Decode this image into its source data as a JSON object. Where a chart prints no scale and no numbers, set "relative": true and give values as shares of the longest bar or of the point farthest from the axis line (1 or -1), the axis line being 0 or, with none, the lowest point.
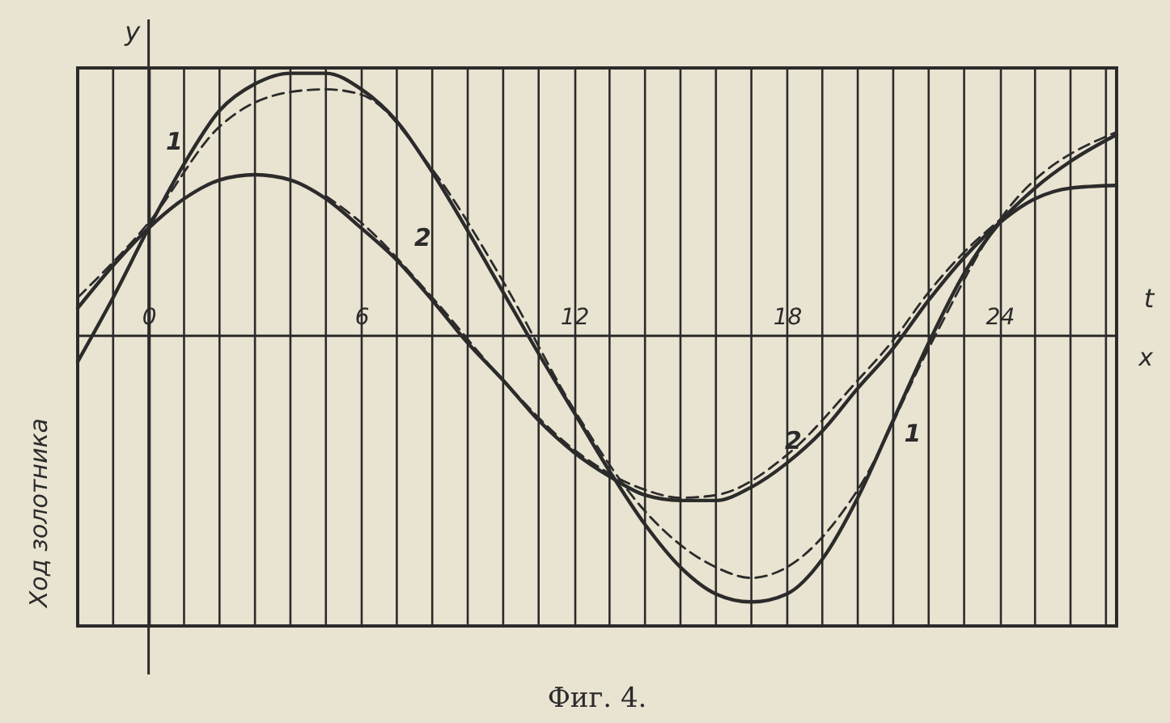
{
  "chart_data": {
    "type": "line",
    "title": "Фиг. 4.",
    "xlabel": "t",
    "ylabel": "y",
    "relative": true,
    "grid": "x",
    "marker": "none",
    "annotations": [
      "x",
      "Ход золотника"
    ],
    "xlim": [
      -2,
      27.3
    ],
    "xticks": [
      {
        "value": -1,
        "label": null
      },
      0,
      {
        "value": 1,
        "label": null
      },
      {
        "value": 2,
        "label": null
      },
      {
        "value": 3,
        "label": null
      },
      {
        "value": 4,
        "label": null
      },
      {
        "value": 5,
        "label": null
      },
      6,
      {
        "value": 7,
        "label": null
      },
      {
        "value": 8,
        "label": null
      },
      {
        "value": 9,
        "label": null
      },
      {
        "value": 10,
        "label": null
      },
      {
        "value": 11,
        "label": null
      },
      12,
      {
        "value": 13,
        "label": null
      },
      {
        "value": 14,
        "label": null
      },
      {
        "value": 15,
        "label": null
      },
      {
        "value": 16,
        "label": null
      },
      {
        "value": 17,
        "label": null
      },
      18,
      {
        "value": 19,
        "label": null
      },
      {
        "value": 20,
        "label": null
      },
      {
        "value": 21,
        "label": null
      },
      {
        "value": 22,
        "label": null
      },
      {
        "value": 23,
        "label": null
      },
      24,
      {
        "value": 25,
        "label": null
      },
      {
        "value": 26,
        "label": null
      },
      {
        "value": 27,
        "label": null
      }
    ],
    "series": [
      {
        "name": "1",
        "color": "#2b2b2b",
        "line_style": "solid",
        "x": [
          -2,
          -1,
          0,
          1,
          2,
          3,
          4,
          5,
          6,
          7,
          8,
          9,
          10,
          11,
          12,
          13,
          14,
          15,
          16,
          17,
          18,
          19,
          20,
          21,
          22,
          23,
          24,
          25,
          26,
          27.3
        ],
        "values": [
          -0.1,
          0.14,
          0.4,
          0.64,
          0.84,
          0.94,
          0.98,
          0.98,
          0.92,
          0.8,
          0.61,
          0.39,
          0.16,
          -0.07,
          -0.29,
          -0.51,
          -0.71,
          -0.87,
          -0.97,
          -1,
          -0.97,
          -0.84,
          -0.61,
          -0.32,
          -0.03,
          0.23,
          0.42,
          0.55,
          0.65,
          0.75
        ]
      },
      {
        "name": "2",
        "color": "#2b2b2b",
        "line_style": "solid",
        "x": [
          -2,
          -1,
          0,
          1,
          2,
          3,
          4,
          5,
          6,
          7,
          8,
          9,
          10,
          11,
          12,
          13,
          14,
          15,
          16,
          17,
          18,
          19,
          20,
          21,
          22,
          23,
          24,
          25,
          26,
          27.3
        ],
        "values": [
          0.1,
          0.26,
          0.4,
          0.51,
          0.58,
          0.6,
          0.58,
          0.51,
          0.4,
          0.28,
          0.13,
          -0.03,
          -0.17,
          -0.32,
          -0.44,
          -0.53,
          -0.6,
          -0.62,
          -0.62,
          -0.57,
          -0.48,
          -0.36,
          -0.2,
          -0.05,
          0.13,
          0.29,
          0.42,
          0.51,
          0.55,
          0.56
        ]
      },
      {
        "color": "#2b2b2b",
        "line_style": "dashed",
        "x": [
          -2,
          0,
          2,
          4,
          5,
          6,
          8,
          10,
          12,
          14,
          16,
          17,
          18,
          20,
          22,
          24,
          27.3
        ],
        "values": [
          0.14,
          0.42,
          0.78,
          0.91,
          0.92,
          0.9,
          0.62,
          0.2,
          -0.28,
          -0.66,
          -0.87,
          -0.91,
          -0.87,
          -0.58,
          -0.05,
          0.43,
          0.76
        ]
      },
      {
        "color": "#2b2b2b",
        "line_style": "dashed",
        "x": [
          5,
          6,
          8,
          10,
          12,
          14,
          15,
          16,
          18,
          20,
          21,
          22,
          23,
          24
        ],
        "values": [
          0.52,
          0.42,
          0.14,
          -0.17,
          -0.43,
          -0.58,
          -0.61,
          -0.6,
          -0.45,
          -0.17,
          -0.02,
          0.16,
          0.31,
          0.43
        ]
      }
    ]
  }
}
